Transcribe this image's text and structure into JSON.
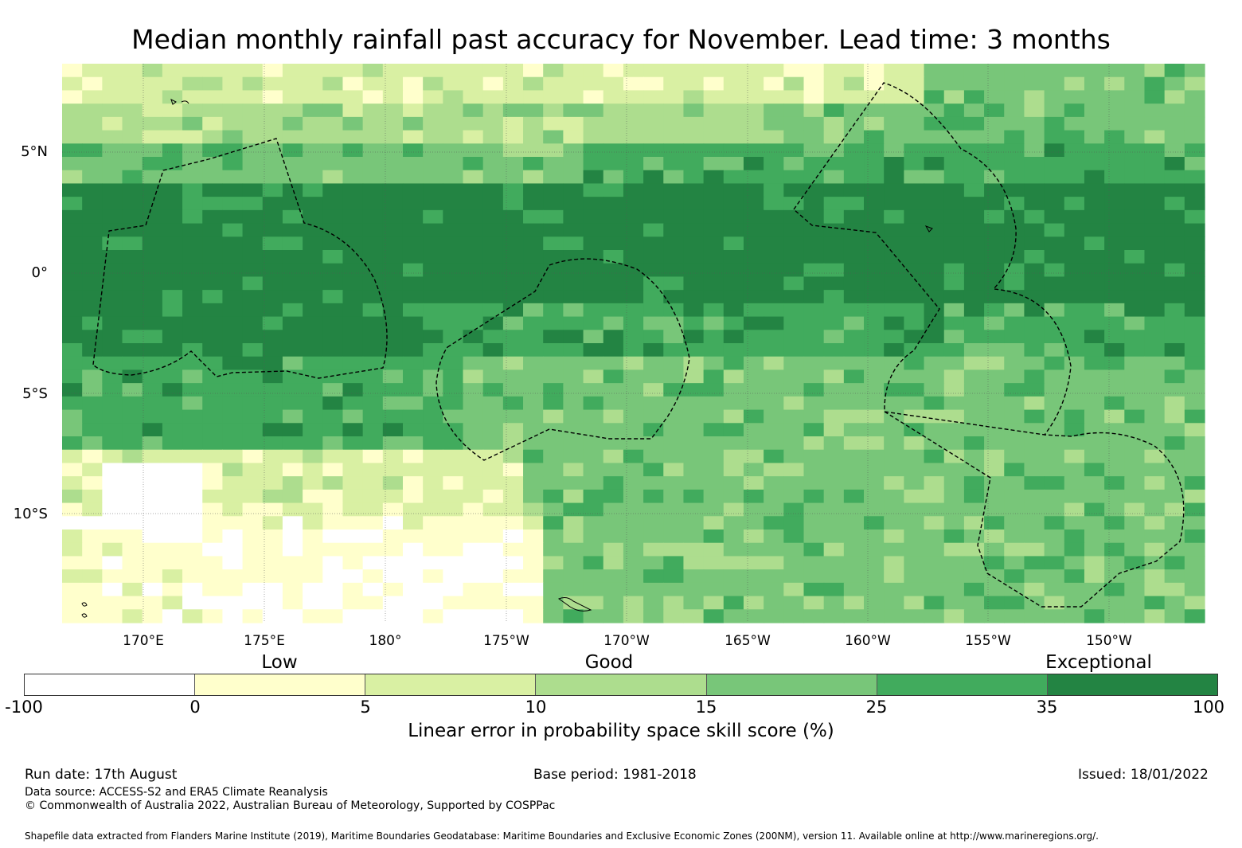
{
  "title": "Median monthly rainfall past accuracy for November. Lead time: 3 months",
  "map": {
    "lat_labels": [
      "5°N",
      "0°",
      "5°S",
      "10°S"
    ],
    "lon_labels": [
      "170°E",
      "175°E",
      "180°",
      "175°W",
      "170°W",
      "165°W",
      "160°W",
      "155°W",
      "150°W"
    ],
    "bins": [
      {
        "range": "-100 to 0",
        "color": "#ffffff"
      },
      {
        "range": "0 to 5",
        "color": "#ffffcc"
      },
      {
        "range": "5 to 10",
        "color": "#d9f0a3"
      },
      {
        "range": "10 to 15",
        "color": "#addd8e"
      },
      {
        "range": "15 to 25",
        "color": "#78c679"
      },
      {
        "range": "25 to 35",
        "color": "#41ab5d"
      },
      {
        "range": "35 to 100",
        "color": "#238443"
      }
    ]
  },
  "legend": {
    "categories": [
      "Low",
      "Good",
      "Exceptional"
    ],
    "ticks": [
      "-100",
      "0",
      "5",
      "10",
      "15",
      "25",
      "35",
      "100"
    ],
    "colors": [
      "#ffffff",
      "#ffffcc",
      "#d9f0a3",
      "#addd8e",
      "#78c679",
      "#41ab5d",
      "#238443"
    ],
    "title": "Linear error in probability space skill score (%)"
  },
  "footer": {
    "run_date": "Run date: 17th August",
    "base_period": "Base period: 1981-2018",
    "issued": "Issued: 18/01/2022",
    "data_source": "Data source: ACCESS-S2 and ERA5 Climate Reanalysis",
    "copyright": "© Commonwealth of Australia 2022, Australian Bureau of Meteorology, Supported by COSPPac",
    "shapefile": "Shapefile data extracted from Flanders Marine Institute (2019), Maritime Boundaries Geodatabase: Maritime Boundaries and Exclusive Economic Zones (200NM), version 11. Available online at http://www.marineregions.org/."
  }
}
